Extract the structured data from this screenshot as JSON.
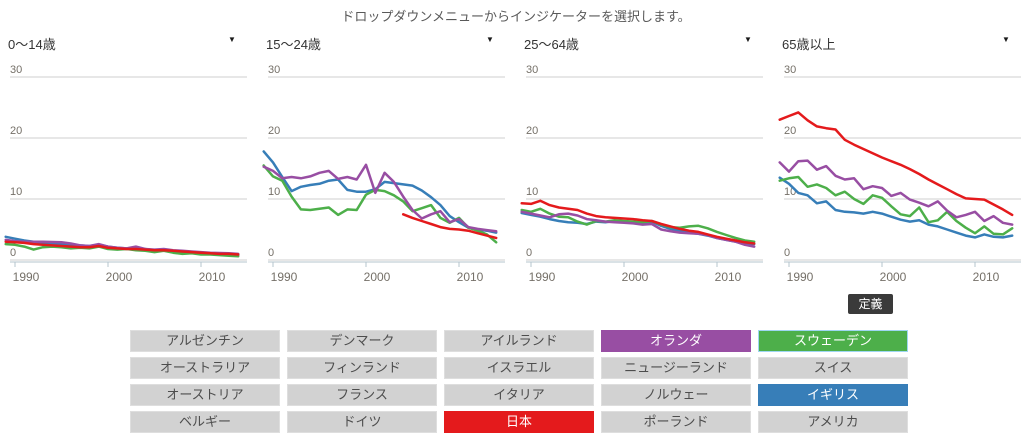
{
  "instruction": "ドロップダウンメニューからインジケーターを選択します。",
  "definition_button_label": "定義",
  "colors": {
    "japan_red": "#e41a1c",
    "netherlands_purple": "#984ea3",
    "sweden_green": "#4daf4a",
    "uk_blue": "#377eb8",
    "gray_button_bg": "#d2d2d2",
    "gridline": "#cfcfcf",
    "axis": "#b4c4ce",
    "tick_text": "#757068",
    "define_button_bg": "#3a3a3a"
  },
  "chart_data": [
    {
      "type": "line",
      "id": "age-0-14",
      "title": "0〜14歳",
      "dropdown_caret": "▼",
      "x": [
        1989,
        1990,
        1991,
        1992,
        1993,
        1994,
        1995,
        1996,
        1997,
        1998,
        1999,
        2000,
        2001,
        2002,
        2003,
        2004,
        2005,
        2006,
        2007,
        2008,
        2009,
        2010,
        2011,
        2012,
        2013,
        2014
      ],
      "xticks": [
        1990,
        2000,
        2010
      ],
      "yticks": [
        0,
        10,
        20,
        30
      ],
      "ylim": [
        0,
        30
      ],
      "grid": true,
      "legend": "none",
      "series": [
        {
          "id": "uk",
          "name": "イギリス",
          "color": "#377eb8",
          "values": [
            3.8,
            3.5,
            3.2,
            3.0,
            2.8,
            2.7,
            2.6,
            2.5,
            2.4,
            2.3,
            2.5,
            2.2,
            2.0,
            1.9,
            1.9,
            1.8,
            1.6,
            1.7,
            1.5,
            1.3,
            1.2,
            1.1,
            1.0,
            0.9,
            0.85,
            0.8
          ]
        },
        {
          "id": "sweden",
          "name": "スウェーデン",
          "color": "#4daf4a",
          "values": [
            2.6,
            2.5,
            2.2,
            1.7,
            2.1,
            2.2,
            2.1,
            1.9,
            2.0,
            1.9,
            2.2,
            1.8,
            1.7,
            1.8,
            1.6,
            1.5,
            1.3,
            1.5,
            1.2,
            1.0,
            1.1,
            0.9,
            0.9,
            0.8,
            0.7,
            0.6
          ]
        },
        {
          "id": "netherlands",
          "name": "オランダ",
          "color": "#984ea3",
          "values": [
            3.3,
            3.1,
            3.0,
            3.0,
            3.0,
            2.95,
            2.9,
            2.7,
            2.4,
            2.3,
            2.6,
            2.2,
            2.0,
            1.9,
            2.2,
            1.8,
            1.7,
            1.8,
            1.6,
            1.5,
            1.4,
            1.3,
            1.2,
            1.15,
            1.1,
            1.0
          ]
        },
        {
          "id": "japan",
          "name": "日本",
          "color": "#e41a1c",
          "values": [
            3.0,
            2.9,
            2.8,
            2.6,
            2.5,
            2.4,
            2.3,
            2.2,
            2.1,
            2.1,
            2.3,
            2.0,
            1.9,
            1.8,
            1.8,
            1.7,
            1.6,
            1.6,
            1.5,
            1.4,
            1.3,
            1.2,
            1.1,
            1.0,
            1.0,
            0.9
          ]
        }
      ]
    },
    {
      "type": "line",
      "id": "age-15-24",
      "title": "15〜24歳",
      "dropdown_caret": "▼",
      "x": [
        1989,
        1990,
        1991,
        1992,
        1993,
        1994,
        1995,
        1996,
        1997,
        1998,
        1999,
        2000,
        2001,
        2002,
        2003,
        2004,
        2005,
        2006,
        2007,
        2008,
        2009,
        2010,
        2011,
        2012,
        2013,
        2014
      ],
      "xticks": [
        1990,
        2000,
        2010
      ],
      "yticks": [
        0,
        10,
        20,
        30
      ],
      "ylim": [
        0,
        30
      ],
      "grid": true,
      "legend": "none",
      "series": [
        {
          "id": "uk",
          "name": "イギリス",
          "color": "#377eb8",
          "values": [
            17.8,
            16.0,
            13.6,
            11.3,
            12.0,
            12.3,
            12.5,
            13.0,
            13.2,
            11.5,
            11.2,
            11.2,
            11.6,
            12.8,
            12.6,
            12.4,
            12.2,
            11.4,
            10.3,
            9.0,
            7.2,
            6.2,
            5.3,
            5.0,
            4.8,
            4.5
          ]
        },
        {
          "id": "sweden",
          "name": "スウェーデン",
          "color": "#4daf4a",
          "values": [
            15.5,
            13.7,
            13.0,
            10.4,
            8.3,
            8.2,
            8.4,
            8.6,
            7.4,
            8.3,
            8.2,
            10.7,
            11.5,
            11.3,
            10.6,
            9.6,
            8.0,
            8.5,
            9.0,
            6.9,
            6.1,
            6.9,
            5.3,
            4.8,
            4.2,
            2.9
          ]
        },
        {
          "id": "netherlands",
          "name": "オランダ",
          "color": "#984ea3",
          "values": [
            15.3,
            14.6,
            13.4,
            13.6,
            13.4,
            13.7,
            14.3,
            14.6,
            13.3,
            13.6,
            13.2,
            15.6,
            11.0,
            14.3,
            12.8,
            10.4,
            8.2,
            6.8,
            7.5,
            8.0,
            6.2,
            6.7,
            5.4,
            5.1,
            4.9,
            4.7
          ]
        },
        {
          "id": "japan",
          "name": "日本",
          "color": "#e41a1c",
          "values": [
            null,
            null,
            null,
            null,
            null,
            null,
            null,
            null,
            null,
            null,
            null,
            null,
            null,
            null,
            null,
            7.5,
            6.9,
            6.4,
            5.9,
            5.4,
            5.1,
            5.0,
            4.8,
            4.4,
            4.0,
            3.6
          ]
        }
      ]
    },
    {
      "type": "line",
      "id": "age-25-64",
      "title": "25〜64歳",
      "dropdown_caret": "▼",
      "x": [
        1989,
        1990,
        1991,
        1992,
        1993,
        1994,
        1995,
        1996,
        1997,
        1998,
        1999,
        2000,
        2001,
        2002,
        2003,
        2004,
        2005,
        2006,
        2007,
        2008,
        2009,
        2010,
        2011,
        2012,
        2013,
        2014
      ],
      "xticks": [
        1990,
        2000,
        2010
      ],
      "yticks": [
        0,
        10,
        20,
        30
      ],
      "ylim": [
        0,
        30
      ],
      "grid": true,
      "legend": "none",
      "series": [
        {
          "id": "uk",
          "name": "イギリス",
          "color": "#377eb8",
          "values": [
            7.7,
            7.4,
            7.1,
            6.7,
            6.4,
            6.2,
            6.1,
            5.9,
            6.3,
            6.2,
            6.4,
            6.3,
            6.2,
            6.1,
            6.3,
            5.6,
            5.1,
            4.8,
            4.5,
            4.3,
            4.0,
            3.6,
            3.3,
            3.0,
            2.7,
            2.6
          ]
        },
        {
          "id": "sweden",
          "name": "スウェーデン",
          "color": "#4daf4a",
          "values": [
            8.2,
            7.9,
            8.4,
            7.6,
            7.1,
            7.0,
            6.3,
            5.8,
            6.4,
            6.3,
            6.5,
            6.4,
            6.3,
            6.2,
            6.4,
            5.8,
            5.4,
            5.3,
            5.5,
            5.6,
            5.2,
            4.6,
            4.1,
            3.6,
            3.2,
            3.0
          ]
        },
        {
          "id": "netherlands",
          "name": "オランダ",
          "color": "#984ea3",
          "values": [
            7.9,
            7.6,
            7.3,
            7.0,
            7.5,
            7.6,
            7.3,
            6.7,
            6.5,
            6.3,
            6.2,
            6.1,
            6.0,
            5.8,
            5.9,
            5.0,
            4.7,
            4.5,
            4.4,
            4.3,
            4.1,
            3.6,
            3.3,
            3.0,
            2.5,
            2.2
          ]
        },
        {
          "id": "japan",
          "name": "日本",
          "color": "#e41a1c",
          "values": [
            9.3,
            9.2,
            9.7,
            9.0,
            8.6,
            8.4,
            8.2,
            7.6,
            7.2,
            7.0,
            6.9,
            6.8,
            6.7,
            6.5,
            6.4,
            5.9,
            5.5,
            5.1,
            4.8,
            4.6,
            4.2,
            3.8,
            3.5,
            3.2,
            2.9,
            2.7
          ]
        }
      ]
    },
    {
      "type": "line",
      "id": "age-65-plus",
      "title": "65歳以上",
      "dropdown_caret": "▼",
      "x": [
        1989,
        1990,
        1991,
        1992,
        1993,
        1994,
        1995,
        1996,
        1997,
        1998,
        1999,
        2000,
        2001,
        2002,
        2003,
        2004,
        2005,
        2006,
        2007,
        2008,
        2009,
        2010,
        2011,
        2012,
        2013,
        2014
      ],
      "xticks": [
        1990,
        2000,
        2010
      ],
      "yticks": [
        0,
        10,
        20,
        30
      ],
      "ylim": [
        0,
        30
      ],
      "grid": true,
      "legend": "none",
      "series": [
        {
          "id": "uk",
          "name": "イギリス",
          "color": "#377eb8",
          "values": [
            13.5,
            12.5,
            11.0,
            10.6,
            9.3,
            9.6,
            8.2,
            7.9,
            7.8,
            7.6,
            7.9,
            7.6,
            7.1,
            6.6,
            6.3,
            6.5,
            5.8,
            5.5,
            5.0,
            4.5,
            4.0,
            3.7,
            4.2,
            3.8,
            3.7,
            4.0
          ]
        },
        {
          "id": "sweden",
          "name": "スウェーデン",
          "color": "#4daf4a",
          "values": [
            13.0,
            13.4,
            13.6,
            12.0,
            12.4,
            11.8,
            10.6,
            11.2,
            10.0,
            9.2,
            10.6,
            10.2,
            8.8,
            7.5,
            7.2,
            8.6,
            6.2,
            6.5,
            7.9,
            6.4,
            5.3,
            4.4,
            5.5,
            4.3,
            4.2,
            5.2
          ]
        },
        {
          "id": "netherlands",
          "name": "オランダ",
          "color": "#984ea3",
          "values": [
            16.0,
            14.5,
            16.2,
            16.3,
            14.8,
            15.4,
            13.8,
            13.2,
            13.4,
            11.6,
            12.1,
            11.8,
            10.5,
            11.0,
            9.9,
            9.4,
            8.8,
            9.6,
            8.1,
            7.0,
            7.4,
            7.9,
            6.4,
            7.2,
            6.1,
            5.8
          ]
        },
        {
          "id": "japan",
          "name": "日本",
          "color": "#e41a1c",
          "values": [
            23.0,
            23.6,
            24.2,
            22.9,
            21.9,
            21.6,
            21.4,
            19.7,
            18.9,
            18.2,
            17.5,
            16.8,
            16.2,
            15.6,
            14.9,
            14.1,
            13.2,
            12.4,
            11.6,
            10.8,
            10.1,
            10.0,
            9.9,
            9.1,
            8.3,
            7.4
          ]
        }
      ]
    }
  ],
  "country_buttons": [
    {
      "label": "アルゼンチン",
      "id": "argentina",
      "selected": false
    },
    {
      "label": "デンマーク",
      "id": "denmark",
      "selected": false
    },
    {
      "label": "アイルランド",
      "id": "ireland",
      "selected": false
    },
    {
      "label": "オランダ",
      "id": "netherlands",
      "selected": true,
      "color": "#984ea3"
    },
    {
      "label": "スウェーデン",
      "id": "sweden",
      "selected": true,
      "color": "#4daf4a",
      "focus": true
    },
    {
      "label": "オーストラリア",
      "id": "australia",
      "selected": false
    },
    {
      "label": "フィンランド",
      "id": "finland",
      "selected": false
    },
    {
      "label": "イスラエル",
      "id": "israel",
      "selected": false
    },
    {
      "label": "ニュージーランド",
      "id": "new-zealand",
      "selected": false
    },
    {
      "label": "スイス",
      "id": "switzerland",
      "selected": false
    },
    {
      "label": "オーストリア",
      "id": "austria",
      "selected": false
    },
    {
      "label": "フランス",
      "id": "france",
      "selected": false
    },
    {
      "label": "イタリア",
      "id": "italy",
      "selected": false
    },
    {
      "label": "ノルウェー",
      "id": "norway",
      "selected": false
    },
    {
      "label": "イギリス",
      "id": "uk",
      "selected": true,
      "color": "#377eb8"
    },
    {
      "label": "ベルギー",
      "id": "belgium",
      "selected": false
    },
    {
      "label": "ドイツ",
      "id": "germany",
      "selected": false
    },
    {
      "label": "日本",
      "id": "japan",
      "selected": true,
      "color": "#e41a1c"
    },
    {
      "label": "ポーランド",
      "id": "poland",
      "selected": false
    },
    {
      "label": "アメリカ",
      "id": "usa",
      "selected": false
    }
  ]
}
